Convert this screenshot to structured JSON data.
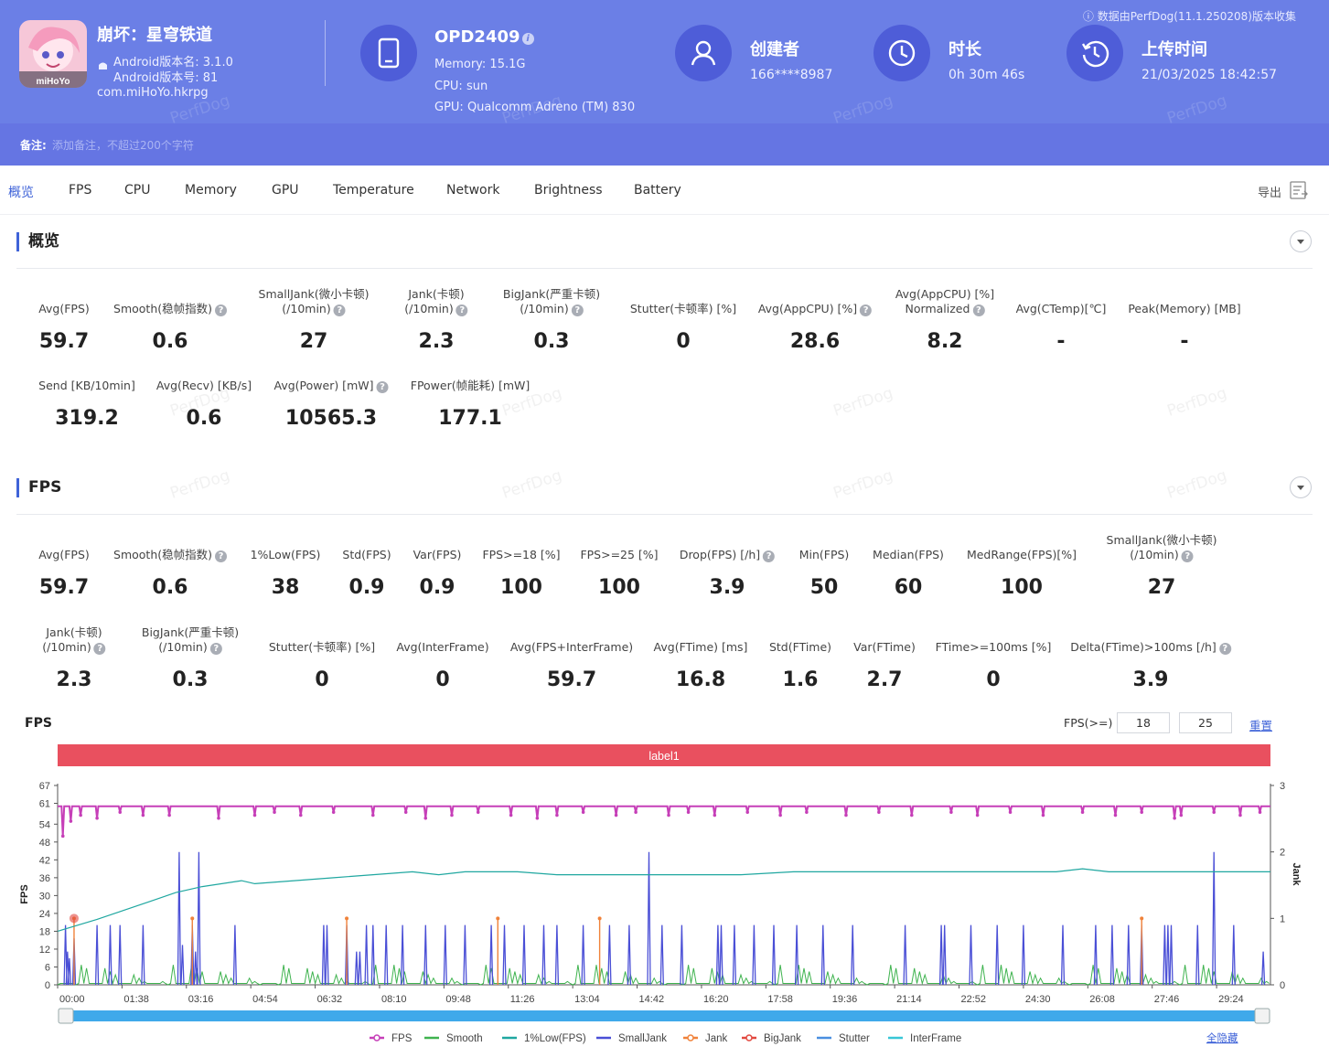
{
  "header": {
    "app_name": "崩坏：星穹铁道",
    "android_version_name": "Android版本名: 3.1.0",
    "android_version_code": "Android版本号: 81",
    "package": "com.miHoYo.hkrpg",
    "app_icon_brand": "miHoYo",
    "device": {
      "name": "OPD2409",
      "memory": "Memory: 15.1G",
      "cpu": "CPU: sun",
      "gpu": "GPU: Qualcomm Adreno (TM) 830"
    },
    "creator": {
      "title": "创建者",
      "value": "166****8987"
    },
    "duration": {
      "title": "时长",
      "value": "0h 30m 46s"
    },
    "upload": {
      "title": "上传时间",
      "value": "21/03/2025 18:42:57"
    },
    "source_note": "ⓘ 数据由PerfDog(11.1.250208)版本收集",
    "remark_label": "备注:",
    "remark_placeholder": "添加备注，不超过200个字符",
    "watermark": "PerfDog"
  },
  "tabs": [
    "概览",
    "FPS",
    "CPU",
    "Memory",
    "GPU",
    "Temperature",
    "Network",
    "Brightness",
    "Battery"
  ],
  "active_tab": "概览",
  "export_label": "导出",
  "overview": {
    "title": "概览",
    "row1": [
      {
        "l1": "Avg(FPS)",
        "l2": "",
        "help": false,
        "value": "59.7"
      },
      {
        "l1": "Smooth(稳帧指数)",
        "l2": "",
        "help": true,
        "value": "0.6"
      },
      {
        "l1": "SmallJank(微小卡顿)",
        "l2": "(/10min)",
        "help": true,
        "value": "27"
      },
      {
        "l1": "Jank(卡顿)",
        "l2": "(/10min)",
        "help": true,
        "value": "2.3"
      },
      {
        "l1": "BigJank(严重卡顿)",
        "l2": "(/10min)",
        "help": true,
        "value": "0.3"
      },
      {
        "l1": "Stutter(卡顿率) [%]",
        "l2": "",
        "help": false,
        "value": "0"
      },
      {
        "l1": "Avg(AppCPU) [%]",
        "l2": "",
        "help": true,
        "value": "28.6"
      },
      {
        "l1": "Avg(AppCPU) [%]",
        "l2": "Normalized",
        "help": true,
        "value": "8.2"
      },
      {
        "l1": "Avg(CTemp)[℃]",
        "l2": "",
        "help": false,
        "value": "-"
      },
      {
        "l1": "Peak(Memory) [MB]",
        "l2": "",
        "help": false,
        "value": "-"
      }
    ],
    "row2": [
      {
        "l1": "Send [KB/10min]",
        "l2": "",
        "help": false,
        "value": "319.2"
      },
      {
        "l1": "Avg(Recv) [KB/s]",
        "l2": "",
        "help": false,
        "value": "0.6"
      },
      {
        "l1": "Avg(Power) [mW]",
        "l2": "",
        "help": true,
        "value": "10565.3"
      },
      {
        "l1": "FPower(帧能耗) [mW]",
        "l2": "",
        "help": false,
        "value": "177.1"
      }
    ]
  },
  "fps_section": {
    "title": "FPS",
    "row1": [
      {
        "l1": "Avg(FPS)",
        "l2": "",
        "help": false,
        "value": "59.7"
      },
      {
        "l1": "Smooth(稳帧指数)",
        "l2": "",
        "help": true,
        "value": "0.6"
      },
      {
        "l1": "1%Low(FPS)",
        "l2": "",
        "help": false,
        "value": "38"
      },
      {
        "l1": "Std(FPS)",
        "l2": "",
        "help": false,
        "value": "0.9"
      },
      {
        "l1": "Var(FPS)",
        "l2": "",
        "help": false,
        "value": "0.9"
      },
      {
        "l1": "FPS>=18 [%]",
        "l2": "",
        "help": false,
        "value": "100"
      },
      {
        "l1": "FPS>=25 [%]",
        "l2": "",
        "help": false,
        "value": "100"
      },
      {
        "l1": "Drop(FPS) [/h]",
        "l2": "",
        "help": true,
        "value": "3.9"
      },
      {
        "l1": "Min(FPS)",
        "l2": "",
        "help": false,
        "value": "50"
      },
      {
        "l1": "Median(FPS)",
        "l2": "",
        "help": false,
        "value": "60"
      },
      {
        "l1": "MedRange(FPS)[%]",
        "l2": "",
        "help": false,
        "value": "100"
      },
      {
        "l1": "SmallJank(微小卡顿)",
        "l2": "(/10min)",
        "help": true,
        "value": "27"
      }
    ],
    "row2": [
      {
        "l1": "Jank(卡顿)",
        "l2": "(/10min)",
        "help": true,
        "value": "2.3"
      },
      {
        "l1": "BigJank(严重卡顿)",
        "l2": "(/10min)",
        "help": true,
        "value": "0.3"
      },
      {
        "l1": "Stutter(卡顿率) [%]",
        "l2": "",
        "help": false,
        "value": "0"
      },
      {
        "l1": "Avg(InterFrame)",
        "l2": "",
        "help": false,
        "value": "0"
      },
      {
        "l1": "Avg(FPS+InterFrame)",
        "l2": "",
        "help": false,
        "value": "59.7"
      },
      {
        "l1": "Avg(FTime) [ms]",
        "l2": "",
        "help": false,
        "value": "16.8"
      },
      {
        "l1": "Std(FTime)",
        "l2": "",
        "help": false,
        "value": "1.6"
      },
      {
        "l1": "Var(FTime)",
        "l2": "",
        "help": false,
        "value": "2.7"
      },
      {
        "l1": "FTime>=100ms [%]",
        "l2": "",
        "help": false,
        "value": "0"
      },
      {
        "l1": "Delta(FTime)>100ms [/h]",
        "l2": "",
        "help": true,
        "value": "3.9"
      }
    ]
  },
  "chart_controls": {
    "title": "FPS",
    "threshold_label": "FPS(>=)",
    "threshold_1": "18",
    "threshold_2": "25",
    "reset_label": "重置",
    "collapse_all_label": "全隐藏"
  },
  "chart_data": {
    "type": "line",
    "label_bar": "label1",
    "ylabel_left": "FPS",
    "ylabel_right": "Jank",
    "yticks_left": [
      0,
      6,
      12,
      18,
      24,
      30,
      36,
      42,
      48,
      54,
      61,
      67
    ],
    "yticks_right": [
      0,
      1,
      2,
      3
    ],
    "ylim_left": [
      0,
      67
    ],
    "ylim_right": [
      0,
      3
    ],
    "xlim_seconds": [
      0,
      1846
    ],
    "xticks": [
      "00:00",
      "01:38",
      "03:16",
      "04:54",
      "06:32",
      "08:10",
      "09:48",
      "11:26",
      "13:04",
      "14:42",
      "16:20",
      "17:58",
      "19:36",
      "21:14",
      "22:52",
      "24:30",
      "26:08",
      "27:46",
      "29:24"
    ],
    "colors": {
      "FPS": "#c63fb8",
      "Smooth": "#3fb34f",
      "1%Low(FPS)": "#1fa7a0",
      "SmallJank": "#4a4fd6",
      "Jank": "#f0823a",
      "BigJank": "#e2483f",
      "Stutter": "#4a8fe0",
      "InterFrame": "#38c6d6"
    },
    "legend": [
      "FPS",
      "Smooth",
      "1%Low(FPS)",
      "SmallJank",
      "Jank",
      "BigJank",
      "Stutter",
      "InterFrame"
    ],
    "fps_baseline": 60,
    "fps_dips": [
      [
        8,
        50
      ],
      [
        20,
        55
      ],
      [
        35,
        57
      ],
      [
        60,
        56
      ],
      [
        95,
        58
      ],
      [
        130,
        57
      ],
      [
        170,
        57
      ],
      [
        245,
        56
      ],
      [
        300,
        57
      ],
      [
        330,
        58
      ],
      [
        370,
        57
      ],
      [
        420,
        58
      ],
      [
        480,
        57
      ],
      [
        530,
        58
      ],
      [
        560,
        56
      ],
      [
        600,
        57
      ],
      [
        640,
        58
      ],
      [
        690,
        57
      ],
      [
        730,
        56
      ],
      [
        760,
        57
      ],
      [
        800,
        58
      ],
      [
        850,
        57
      ],
      [
        880,
        58
      ],
      [
        930,
        57
      ],
      [
        960,
        58
      ],
      [
        1000,
        57
      ],
      [
        1050,
        58
      ],
      [
        1100,
        57
      ],
      [
        1140,
        58
      ],
      [
        1200,
        57
      ],
      [
        1250,
        58
      ],
      [
        1300,
        57
      ],
      [
        1360,
        58
      ],
      [
        1400,
        57
      ],
      [
        1450,
        58
      ],
      [
        1500,
        57
      ],
      [
        1560,
        58
      ],
      [
        1610,
        57
      ],
      [
        1650,
        58
      ],
      [
        1700,
        56
      ],
      [
        1710,
        57
      ],
      [
        1760,
        58
      ],
      [
        1800,
        57
      ],
      [
        1830,
        58
      ]
    ],
    "low1_curve": [
      [
        0,
        18
      ],
      [
        30,
        20
      ],
      [
        60,
        22
      ],
      [
        100,
        25
      ],
      [
        140,
        28
      ],
      [
        180,
        31
      ],
      [
        220,
        33
      ],
      [
        280,
        35
      ],
      [
        300,
        34
      ],
      [
        360,
        35
      ],
      [
        420,
        36
      ],
      [
        480,
        37
      ],
      [
        540,
        38
      ],
      [
        580,
        37
      ],
      [
        620,
        38
      ],
      [
        700,
        38
      ],
      [
        760,
        37
      ],
      [
        800,
        37
      ],
      [
        880,
        37
      ],
      [
        960,
        37
      ],
      [
        1040,
        37
      ],
      [
        1120,
        38
      ],
      [
        1200,
        38
      ],
      [
        1280,
        38
      ],
      [
        1360,
        38
      ],
      [
        1440,
        38
      ],
      [
        1520,
        38
      ],
      [
        1560,
        39
      ],
      [
        1600,
        38
      ],
      [
        1680,
        38
      ],
      [
        1760,
        38
      ],
      [
        1846,
        38
      ]
    ],
    "jank_spikes": [
      [
        12,
        0.9
      ],
      [
        15,
        0.5
      ],
      [
        18,
        0.4
      ],
      [
        25,
        0.7
      ],
      [
        60,
        0.9
      ],
      [
        80,
        0.9
      ],
      [
        95,
        0.9
      ],
      [
        130,
        0.9
      ],
      [
        185,
        2.0
      ],
      [
        190,
        0.6
      ],
      [
        205,
        0.9
      ],
      [
        210,
        0.5
      ],
      [
        215,
        2.0
      ],
      [
        270,
        0.9
      ],
      [
        405,
        0.9
      ],
      [
        410,
        0.9
      ],
      [
        440,
        0.9
      ],
      [
        455,
        0.5
      ],
      [
        460,
        0.5
      ],
      [
        470,
        0.9
      ],
      [
        480,
        0.9
      ],
      [
        500,
        0.9
      ],
      [
        525,
        0.9
      ],
      [
        560,
        0.9
      ],
      [
        590,
        0.9
      ],
      [
        620,
        0.9
      ],
      [
        660,
        0.9
      ],
      [
        680,
        0.9
      ],
      [
        710,
        0.9
      ],
      [
        740,
        0.9
      ],
      [
        760,
        0.9
      ],
      [
        800,
        0.9
      ],
      [
        840,
        0.9
      ],
      [
        870,
        0.9
      ],
      [
        900,
        2.0
      ],
      [
        920,
        0.9
      ],
      [
        950,
        0.9
      ],
      [
        1005,
        0.9
      ],
      [
        1010,
        0.9
      ],
      [
        1030,
        0.9
      ],
      [
        1060,
        0.9
      ],
      [
        1090,
        0.9
      ],
      [
        1125,
        0.9
      ],
      [
        1165,
        0.9
      ],
      [
        1210,
        0.9
      ],
      [
        1290,
        0.9
      ],
      [
        1345,
        0.9
      ],
      [
        1350,
        0.9
      ],
      [
        1390,
        0.9
      ],
      [
        1430,
        0.9
      ],
      [
        1470,
        0.9
      ],
      [
        1530,
        0.9
      ],
      [
        1580,
        0.9
      ],
      [
        1605,
        0.9
      ],
      [
        1630,
        0.9
      ],
      [
        1650,
        0.9
      ],
      [
        1685,
        0.9
      ],
      [
        1690,
        0.9
      ],
      [
        1695,
        0.9
      ],
      [
        1735,
        0.9
      ],
      [
        1760,
        2.0
      ],
      [
        1790,
        0.9
      ],
      [
        1835,
        0.5
      ]
    ],
    "bigjank_marks": [
      [
        25,
        1.0
      ],
      [
        205,
        1.0
      ],
      [
        440,
        1.0
      ],
      [
        670,
        1.0
      ],
      [
        825,
        1.0
      ],
      [
        1650,
        1.0
      ]
    ]
  }
}
